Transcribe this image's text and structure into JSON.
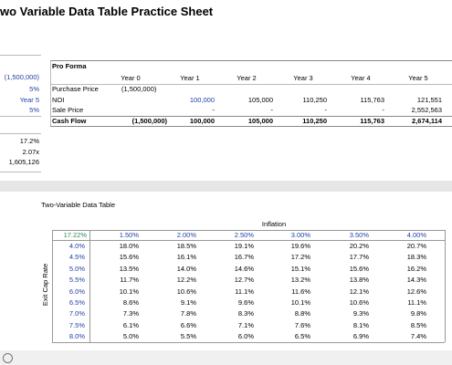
{
  "header": {
    "title": "wo Variable Data Table Practice Sheet"
  },
  "inputs": [
    "(1,500,000)",
    "5%",
    "Year 5",
    "5%"
  ],
  "outputs": [
    "17.2%",
    "2.07x",
    "1,605,126"
  ],
  "pro_forma": {
    "title": "Pro Forma",
    "columns": [
      "Year 0",
      "Year 1",
      "Year 2",
      "Year 3",
      "Year 4",
      "Year 5"
    ],
    "rows": [
      {
        "label": "Purchase Price",
        "cells": [
          "(1,500,000)"
        ]
      },
      {
        "label": "NOI",
        "cells": [
          "",
          "100,000",
          "105,000",
          "110,250",
          "115,763",
          "121,551"
        ]
      },
      {
        "label": "Sale Price",
        "cells": [
          "",
          "-",
          "-",
          "-",
          "-",
          "2,552,563"
        ]
      },
      {
        "label": "Cash Flow",
        "cells": [
          "(1,500,000)",
          "100,000",
          "105,000",
          "110,250",
          "115,763",
          "2,674,114"
        ]
      }
    ]
  },
  "data_table": {
    "title": "Two-Variable Data Table",
    "column_axis": "Inflation",
    "row_axis": "Exit Cap Rate",
    "corner": "17.22%",
    "columns": [
      "1.50%",
      "2.00%",
      "2.50%",
      "3.00%",
      "3.50%",
      "4.00%"
    ],
    "rows": [
      {
        "label": "4.0%",
        "cells": [
          "18.0%",
          "18.5%",
          "19.1%",
          "19.6%",
          "20.2%",
          "20.7%"
        ]
      },
      {
        "label": "4.5%",
        "cells": [
          "15.6%",
          "16.1%",
          "16.7%",
          "17.2%",
          "17.7%",
          "18.3%"
        ]
      },
      {
        "label": "5.0%",
        "cells": [
          "13.5%",
          "14.0%",
          "14.6%",
          "15.1%",
          "15.6%",
          "16.2%"
        ]
      },
      {
        "label": "5.5%",
        "cells": [
          "11.7%",
          "12.2%",
          "12.7%",
          "13.2%",
          "13.8%",
          "14.3%"
        ]
      },
      {
        "label": "6.0%",
        "cells": [
          "10.1%",
          "10.6%",
          "11.1%",
          "11.6%",
          "12.1%",
          "12.6%"
        ]
      },
      {
        "label": "6.5%",
        "cells": [
          "8.6%",
          "9.1%",
          "9.6%",
          "10.1%",
          "10.6%",
          "11.1%"
        ]
      },
      {
        "label": "7.0%",
        "cells": [
          "7.3%",
          "7.8%",
          "8.3%",
          "8.8%",
          "9.3%",
          "9.8%"
        ]
      },
      {
        "label": "7.5%",
        "cells": [
          "6.1%",
          "6.6%",
          "7.1%",
          "7.6%",
          "8.1%",
          "8.5%"
        ]
      },
      {
        "label": "8.0%",
        "cells": [
          "5.0%",
          "5.5%",
          "6.0%",
          "6.5%",
          "6.9%",
          "7.4%"
        ]
      }
    ]
  }
}
